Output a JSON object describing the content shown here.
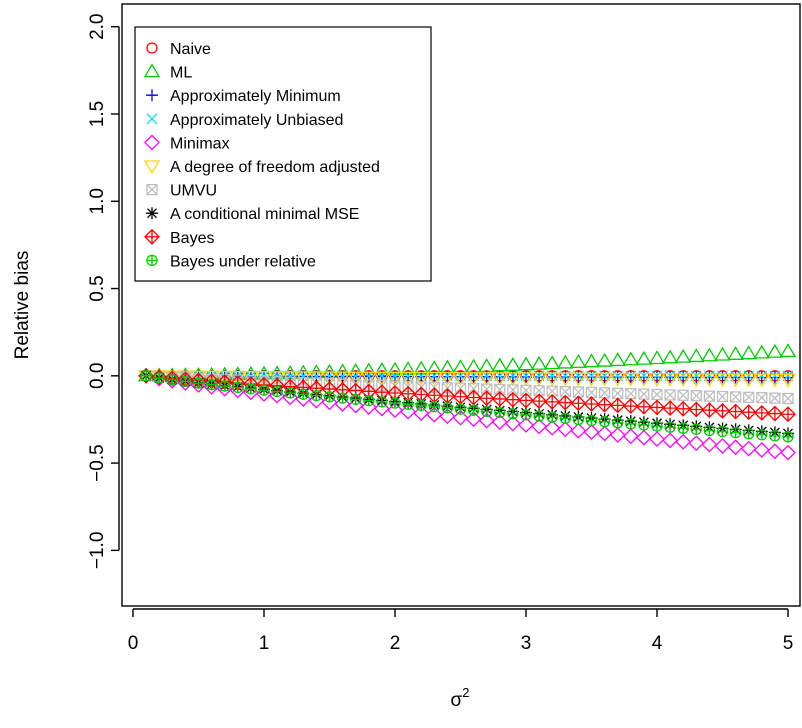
{
  "chart_data": {
    "type": "scatter",
    "title": "",
    "xlabel_base": "σ",
    "xlabel_sup": "2",
    "ylabel": "Relative bias",
    "xlim": [
      0,
      5
    ],
    "ylim": [
      -1.25,
      2.05
    ],
    "x_ticks": [
      0,
      1,
      2,
      3,
      4,
      5
    ],
    "y_ticks": [
      -1.0,
      -0.5,
      0.0,
      0.5,
      1.0,
      1.5,
      2.0
    ],
    "x_tick_labels": [
      "0",
      "1",
      "2",
      "3",
      "4",
      "5"
    ],
    "y_tick_labels": [
      "-1.0",
      "-0.5",
      "0.0",
      "0.5",
      "1.0",
      "1.5",
      "2.0"
    ],
    "x": [
      0.1,
      0.2,
      0.3,
      0.4,
      0.5,
      0.6,
      0.7,
      0.8,
      0.9,
      1.0,
      1.1,
      1.2,
      1.3,
      1.4,
      1.5,
      1.6,
      1.7,
      1.8,
      1.9,
      2.0,
      2.1,
      2.2,
      2.3,
      2.4,
      2.5,
      2.6,
      2.7,
      2.8,
      2.9,
      3.0,
      3.1,
      3.2,
      3.3,
      3.4,
      3.5,
      3.6,
      3.7,
      3.8,
      3.9,
      4.0,
      4.1,
      4.2,
      4.3,
      4.4,
      4.5,
      4.6,
      4.7,
      4.8,
      4.9,
      5.0
    ],
    "legend_position": "top-left",
    "series": [
      {
        "name": "Naive",
        "symbol": "circle",
        "color": "#ff0000",
        "start": 0,
        "end": 0
      },
      {
        "name": "ML",
        "symbol": "triangle-up",
        "color": "#00cd00",
        "start": 0,
        "end": 0.14
      },
      {
        "name": "Approximately Minimum",
        "symbol": "plus",
        "color": "#0000ff",
        "start": 0,
        "end": -0.01
      },
      {
        "name": "Approximately Unbiased",
        "symbol": "cross",
        "color": "#00e5ee",
        "start": 0,
        "end": 0.0
      },
      {
        "name": "Minimax",
        "symbol": "diamond",
        "color": "#ff00ff",
        "start": 0,
        "end": -0.44
      },
      {
        "name": "A degree of freedom adjusted",
        "symbol": "triangle-down",
        "color": "#ffd700",
        "start": 0,
        "end": -0.02
      },
      {
        "name": "UMVU",
        "symbol": "square-x",
        "color": "#bebebe",
        "start": 0,
        "end": -0.13
      },
      {
        "name": "A conditional minimal MSE",
        "symbol": "asterisk",
        "color": "#000000",
        "start": 0,
        "end": -0.33
      },
      {
        "name": "Bayes",
        "symbol": "diamond-plus",
        "color": "#ff0000",
        "start": 0,
        "end": -0.22
      },
      {
        "name": "Bayes under relative",
        "symbol": "circle-plus",
        "color": "#00cd00",
        "start": 0,
        "end": -0.35
      }
    ]
  }
}
